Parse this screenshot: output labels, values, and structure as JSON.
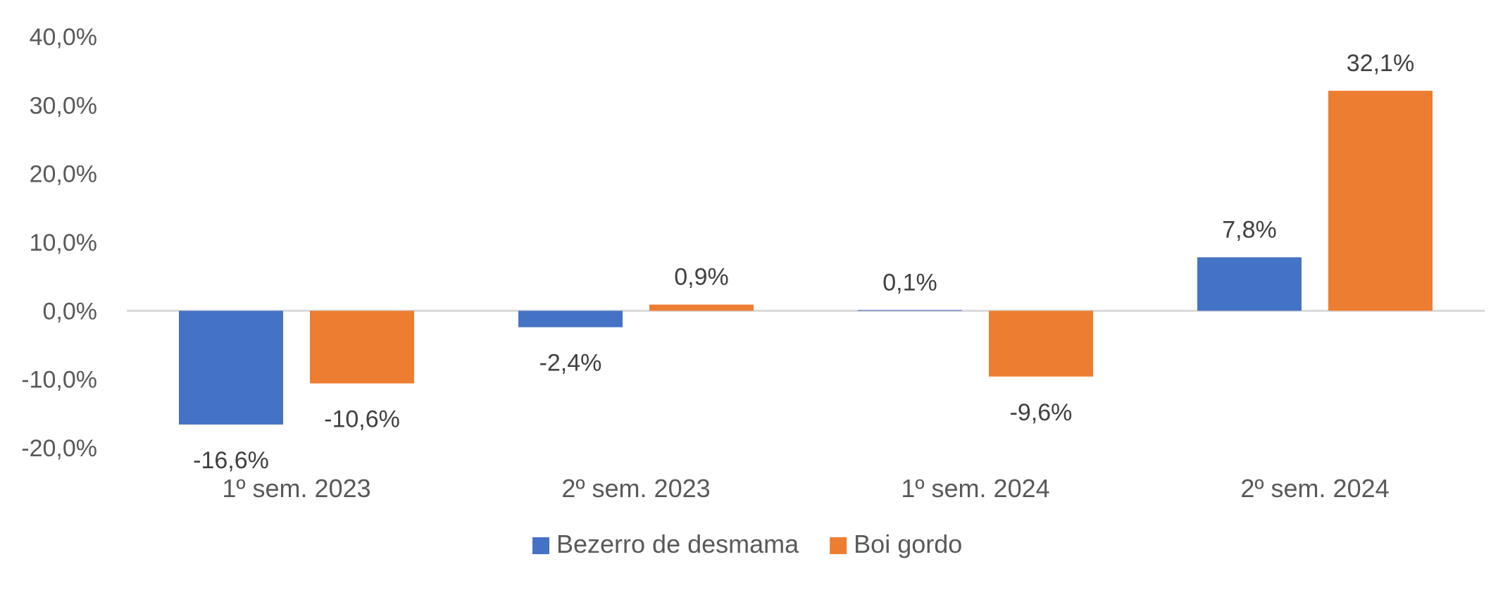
{
  "chart_data": {
    "type": "bar",
    "categories": [
      "1º sem. 2023",
      "2º sem. 2023",
      "1º sem. 2024",
      "2º sem. 2024"
    ],
    "series": [
      {
        "name": "Bezerro de desmama",
        "color": "#4472C4",
        "values": [
          -16.6,
          -2.4,
          0.1,
          7.8
        ],
        "labels": [
          "-16,6%",
          "-2,4%",
          "0,1%",
          "7,8%"
        ]
      },
      {
        "name": "Boi gordo",
        "color": "#ED7D31",
        "values": [
          -10.6,
          0.9,
          -9.6,
          32.1
        ],
        "labels": [
          "-10,6%",
          "0,9%",
          "-9,6%",
          "32,1%"
        ]
      }
    ],
    "ylim": [
      -20,
      40
    ],
    "yticks": [
      40,
      30,
      20,
      10,
      0,
      -10,
      -20
    ],
    "ytick_labels": [
      "40,0%",
      "30,0%",
      "20,0%",
      "10,0%",
      "0,0%",
      "-10,0%",
      "-20,0%"
    ],
    "grid": false,
    "legend_position": "bottom",
    "title": "",
    "xlabel": "",
    "ylabel": ""
  }
}
